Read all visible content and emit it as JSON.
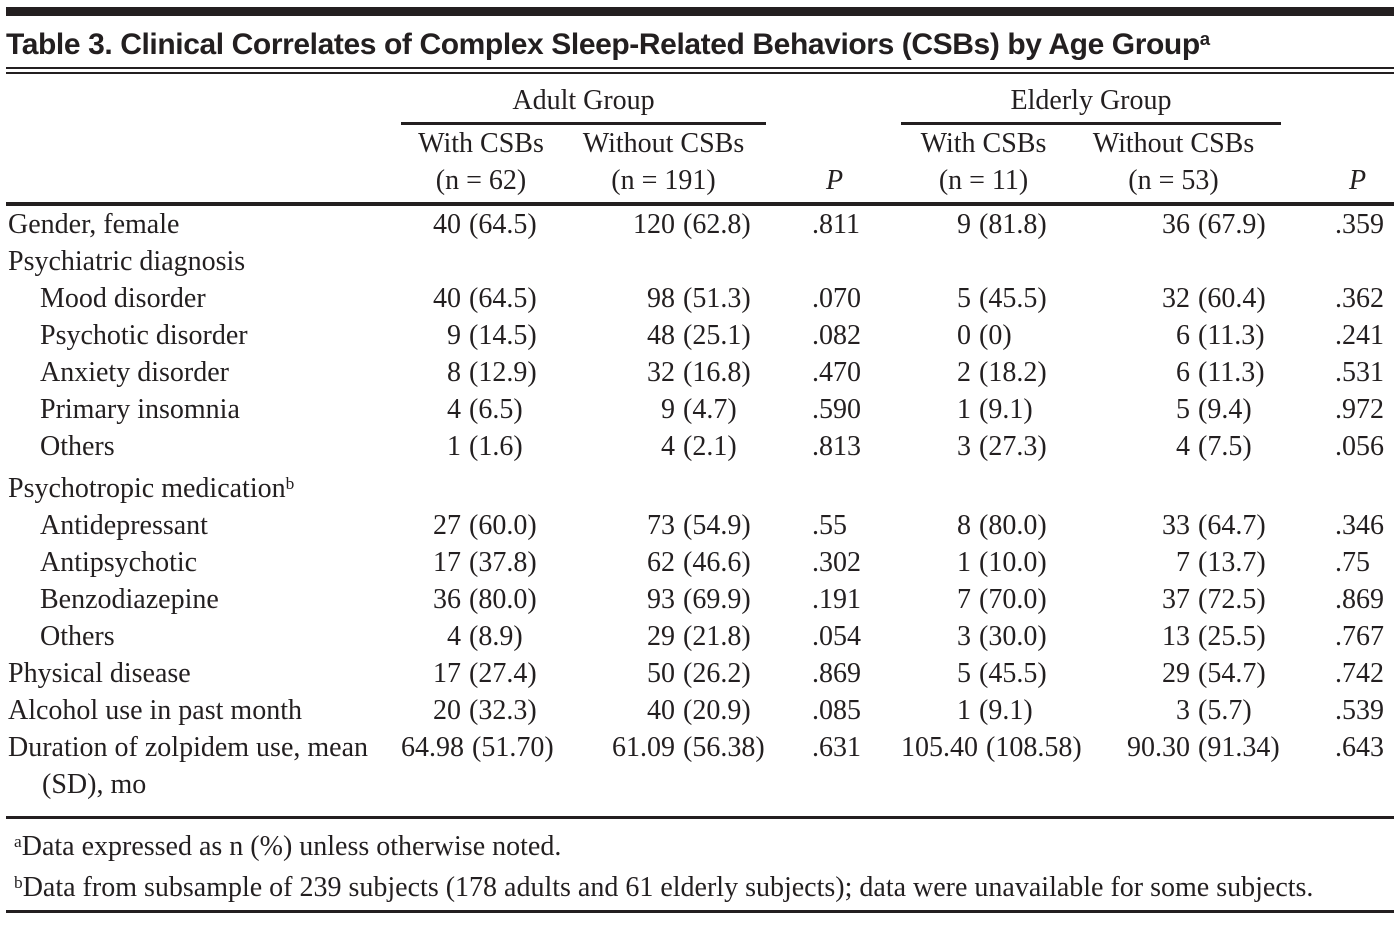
{
  "colors": {
    "ink": "#231f20",
    "background": "#ffffff"
  },
  "title": {
    "text": "Table 3. Clinical Correlates of Complex Sleep-Related Behaviors (CSBs) by Age Group",
    "sup": "a"
  },
  "table": {
    "header": {
      "groups": [
        "Adult Group",
        "Elderly Group"
      ],
      "p_label": "P",
      "columns": [
        {
          "line1": "With CSBs",
          "line2": "(n = 62)"
        },
        {
          "line1": "Without CSBs",
          "line2": "(n = 191)"
        },
        {
          "line1": "With CSBs",
          "line2": "(n = 11)"
        },
        {
          "line1": "Without CSBs",
          "line2": "(n = 53)"
        }
      ]
    },
    "rows": [
      {
        "label": "Gender, female",
        "indent": 0,
        "cells": [
          "40 (64.5)",
          "120 (62.8)",
          ".811",
          "9 (81.8)",
          "36 (67.9)",
          ".359"
        ]
      },
      {
        "label": "Psychiatric diagnosis",
        "indent": 0,
        "cells": []
      },
      {
        "label": "Mood disorder",
        "indent": 1,
        "cells": [
          "40 (64.5)",
          "98 (51.3)",
          ".070",
          "5 (45.5)",
          "32 (60.4)",
          ".362"
        ]
      },
      {
        "label": "Psychotic disorder",
        "indent": 1,
        "cells": [
          "9 (14.5)",
          "48 (25.1)",
          ".082",
          "0 (0)",
          "6 (11.3)",
          ".241"
        ]
      },
      {
        "label": "Anxiety disorder",
        "indent": 1,
        "cells": [
          "8 (12.9)",
          "32 (16.8)",
          ".470",
          "2 (18.2)",
          "6 (11.3)",
          ".531"
        ]
      },
      {
        "label": "Primary insomnia",
        "indent": 1,
        "cells": [
          "4 (6.5)",
          "9 (4.7)",
          ".590",
          "1 (9.1)",
          "5 (9.4)",
          ".972"
        ]
      },
      {
        "label": "Others",
        "indent": 1,
        "cells": [
          "1 (1.6)",
          "4 (2.1)",
          ".813",
          "3 (27.3)",
          "4 (7.5)",
          ".056"
        ]
      },
      {
        "label": "Psychotropic medication",
        "sup": "b",
        "indent": 0,
        "cells": []
      },
      {
        "label": "Antidepressant",
        "indent": 1,
        "cells": [
          "27 (60.0)",
          "73 (54.9)",
          ".55",
          "8 (80.0)",
          "33 (64.7)",
          ".346"
        ]
      },
      {
        "label": "Antipsychotic",
        "indent": 1,
        "cells": [
          "17 (37.8)",
          "62 (46.6)",
          ".302",
          "1 (10.0)",
          "7 (13.7)",
          ".75"
        ]
      },
      {
        "label": "Benzodiazepine",
        "indent": 1,
        "cells": [
          "36 (80.0)",
          "93 (69.9)",
          ".191",
          "7 (70.0)",
          "37 (72.5)",
          ".869"
        ]
      },
      {
        "label": "Others",
        "indent": 1,
        "cells": [
          "4 (8.9)",
          "29 (21.8)",
          ".054",
          "3 (30.0)",
          "13 (25.5)",
          ".767"
        ]
      },
      {
        "label": "Physical disease",
        "indent": 0,
        "cells": [
          "17 (27.4)",
          "50 (26.2)",
          ".869",
          "5 (45.5)",
          "29 (54.7)",
          ".742"
        ]
      },
      {
        "label": "Alcohol use in past month",
        "indent": 0,
        "cells": [
          "20 (32.3)",
          "40 (20.9)",
          ".085",
          "1 (9.1)",
          "3 (5.7)",
          ".539"
        ]
      },
      {
        "label": "Duration of zolpidem use, mean (SD), mo",
        "indent": 0,
        "cells": [
          "64.98 (51.70)",
          "61.09 (56.38)",
          ".631",
          "105.40 (108.58)",
          "90.30 (91.34)",
          ".643"
        ]
      }
    ]
  },
  "footnotes": [
    {
      "sup": "a",
      "text": "Data expressed as n (%) unless otherwise noted."
    },
    {
      "sup": "b",
      "text": "Data from subsample of 239 subjects (178 adults and 61 elderly subjects); data were unavailable for some subjects."
    }
  ]
}
